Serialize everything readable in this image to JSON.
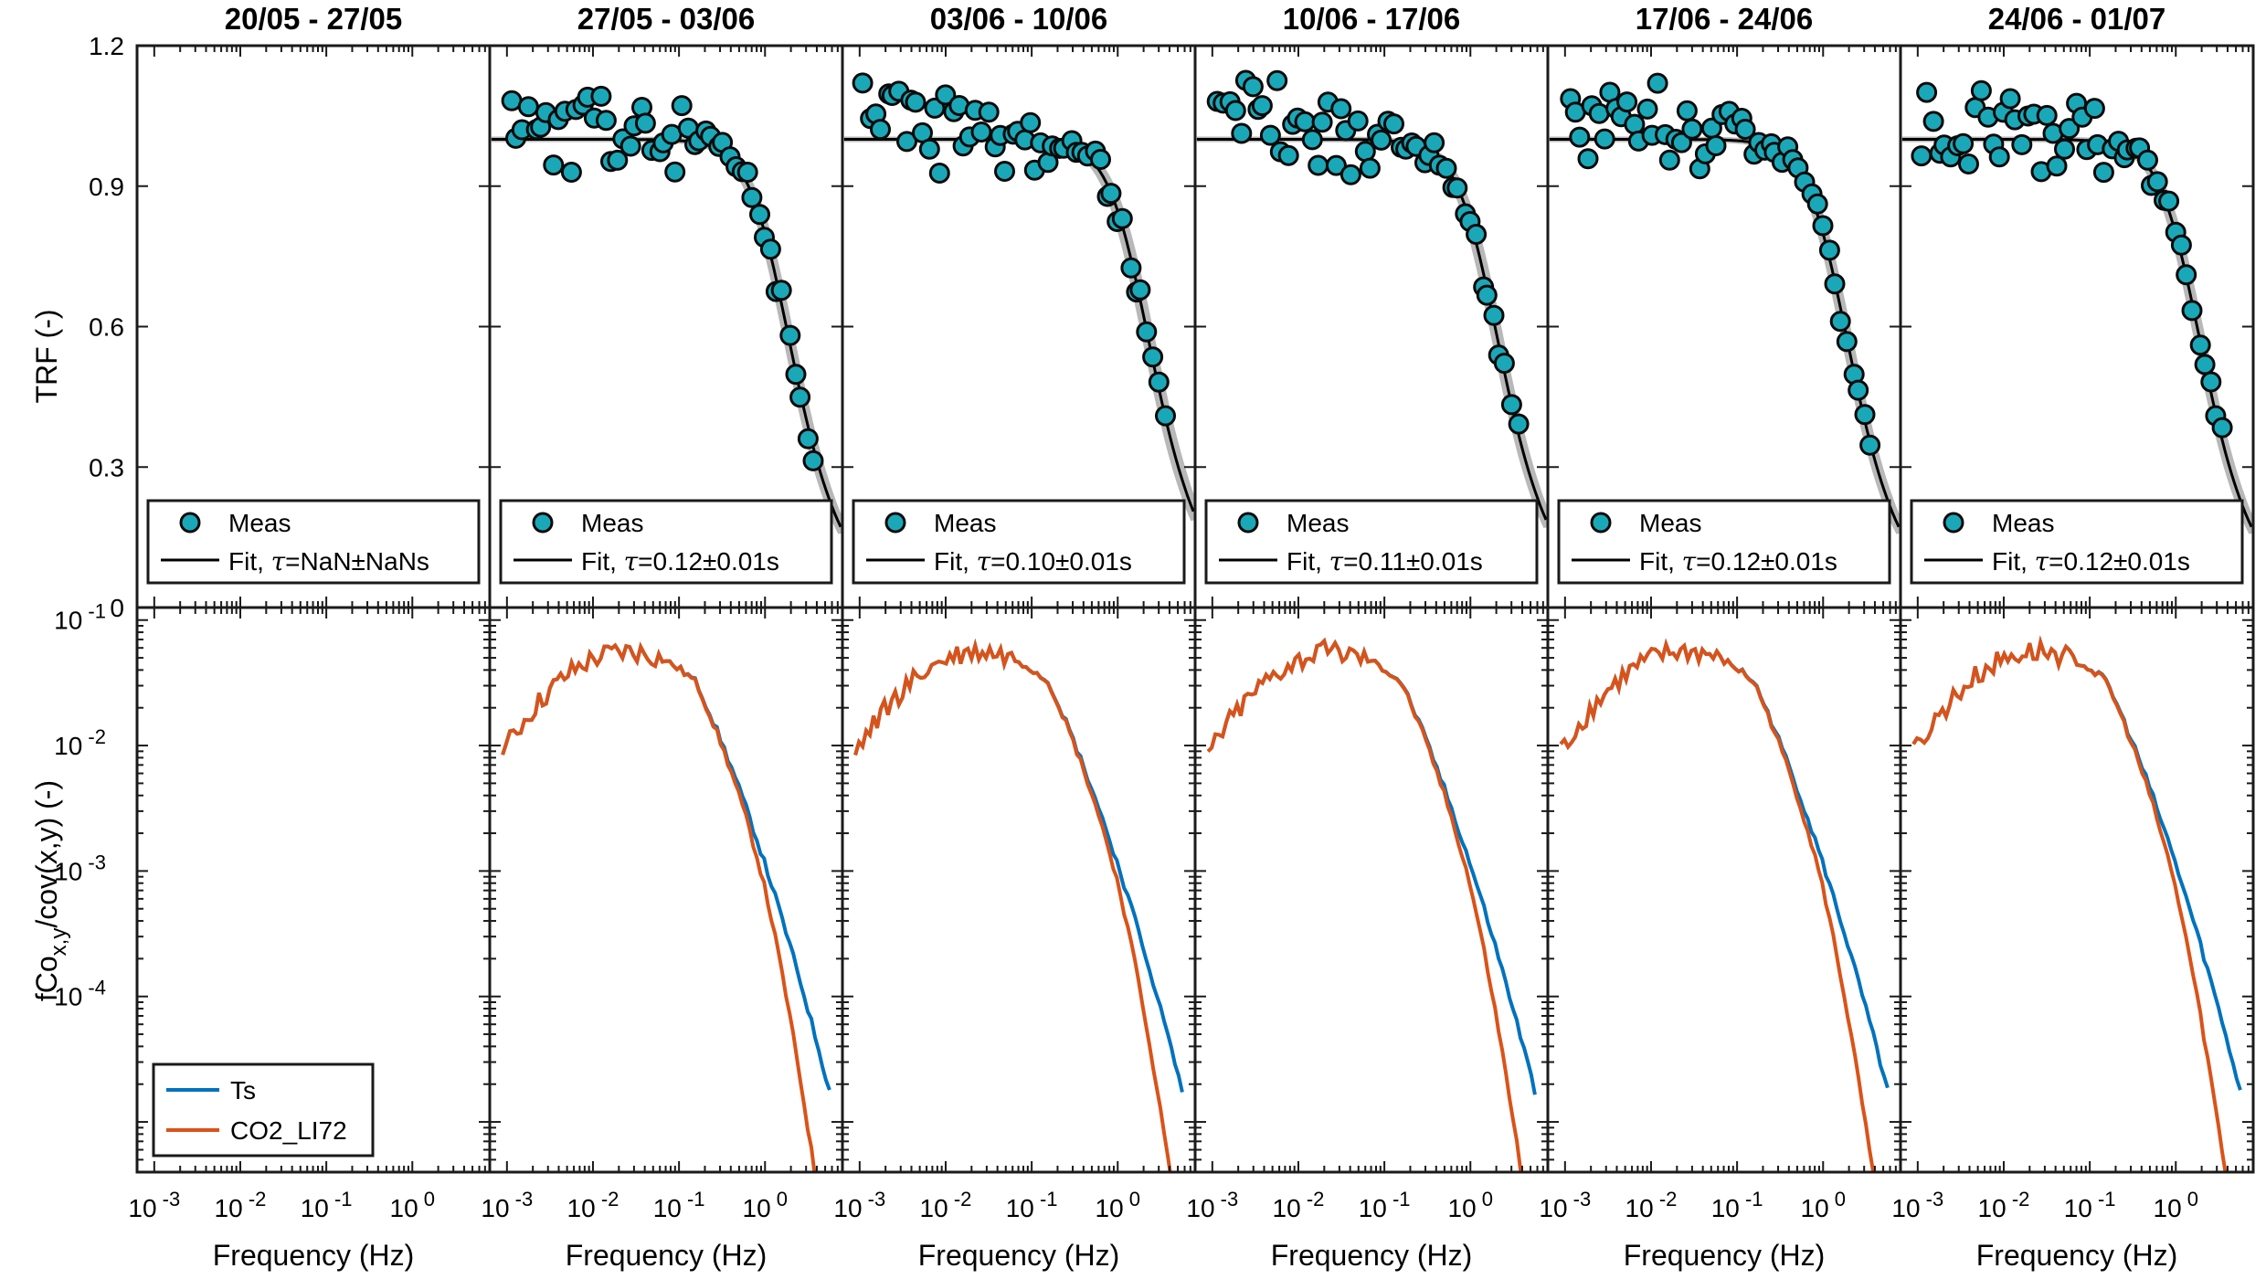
{
  "figure": {
    "top_ylabel": "TRF (-)",
    "bottom_ylabel_main": "fCo",
    "bottom_ylabel_sub": "x,y",
    "bottom_ylabel_rest": "/cov(x,y) (-)",
    "xlabel": "Frequency (Hz)"
  },
  "colors": {
    "meas_fill": "#1aa8b8",
    "meas_edge": "#0a0a0a",
    "fit": "#000000",
    "fit_band": "#b8b8b8",
    "ts": "#0072bd",
    "co2": "#d95319"
  },
  "legend_top": {
    "meas_label": "Meas",
    "fit_prefix": "Fit,  ",
    "tau_symbol": "τ"
  },
  "legend_bottom": {
    "ts_label": "Ts",
    "co2_label": "CO2_LI72"
  },
  "top_axis": {
    "ylim": [
      0,
      1.2
    ],
    "yticks": [
      "0",
      "0.3",
      "0.6",
      "0.9",
      "1.2"
    ]
  },
  "bottom_axis": {
    "ylim_log10": [
      -5.4,
      -0.9
    ],
    "yticks": [
      {
        "base": "10",
        "exp": "-1"
      },
      {
        "base": "10",
        "exp": "-2"
      },
      {
        "base": "10",
        "exp": "-3"
      },
      {
        "base": "10",
        "exp": "-4"
      }
    ]
  },
  "x_axis": {
    "xlim_log10": [
      -3.2,
      0.9
    ],
    "xticks": [
      {
        "base": "10",
        "exp": "-3"
      },
      {
        "base": "10",
        "exp": "-2"
      },
      {
        "base": "10",
        "exp": "-1"
      },
      {
        "base": "10",
        "exp": "0"
      }
    ]
  },
  "chart_data": [
    {
      "title": "20/05 - 27/05",
      "tau_text": "=NaN±NaNs",
      "has_data": false
    },
    {
      "title": "27/05 - 03/06",
      "tau_text": "=0.12±0.01s",
      "tau": 0.12,
      "has_data": true,
      "seed": 11
    },
    {
      "title": "03/06 - 10/06",
      "tau_text": "=0.10±0.01s",
      "tau": 0.1,
      "has_data": true,
      "seed": 23
    },
    {
      "title": "10/06 - 17/06",
      "tau_text": "=0.11±0.01s",
      "tau": 0.11,
      "has_data": true,
      "seed": 37
    },
    {
      "title": "17/06 - 24/06",
      "tau_text": "=0.12±0.01s",
      "tau": 0.12,
      "has_data": true,
      "seed": 41
    },
    {
      "title": "24/06 - 01/07",
      "tau_text": "=0.12±0.01s",
      "tau": 0.12,
      "has_data": true,
      "seed": 53
    }
  ]
}
